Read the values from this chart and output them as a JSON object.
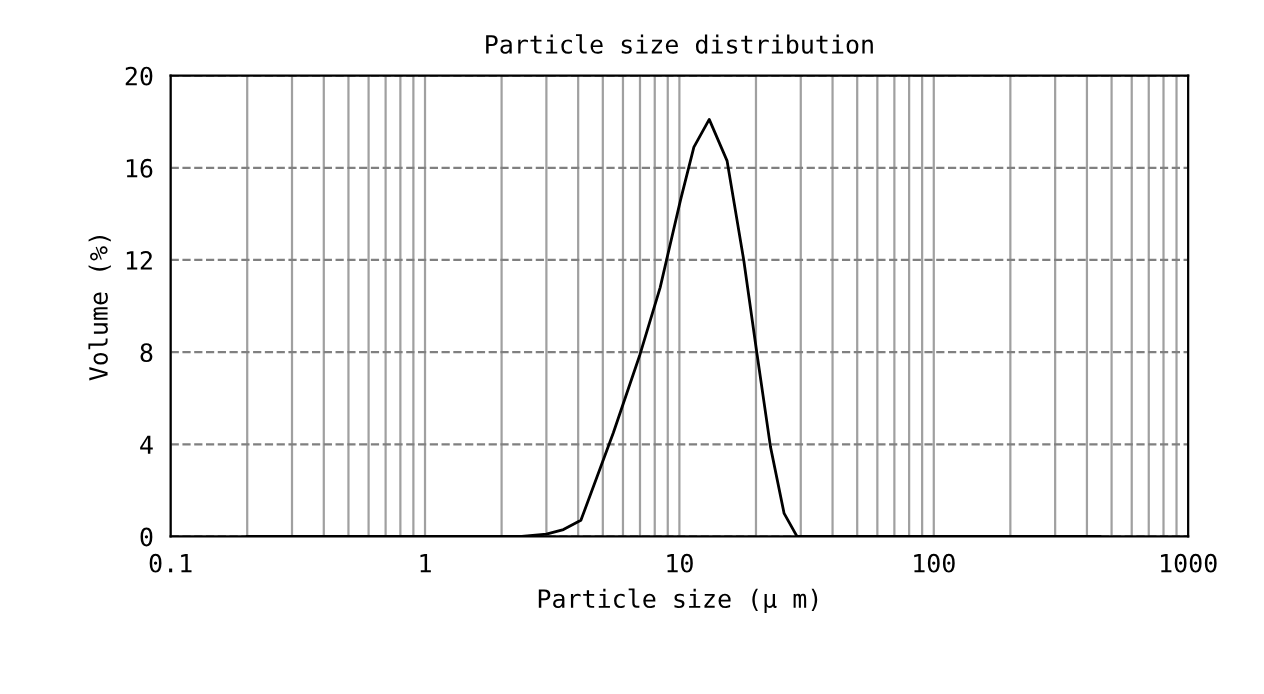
{
  "chart_data": {
    "type": "line",
    "title": "Particle size distribution",
    "xlabel": "Particle size (μ m)",
    "ylabel": "Volume (%)",
    "log": "x",
    "xlim": [
      0.1,
      1000
    ],
    "xticks": [
      0.1,
      1,
      10,
      100,
      1000
    ],
    "ylim": [
      0,
      20
    ],
    "yticks": [
      0,
      4,
      8,
      12,
      16,
      20
    ],
    "grid": true,
    "marker": "none",
    "line_style": "solid",
    "series": [
      {
        "color": "#000000",
        "x": [
          0.2,
          1,
          2.0,
          2.4,
          3.0,
          3.5,
          4.1,
          5.5,
          7.0,
          8.4,
          10.1,
          11.4,
          13.1,
          15.4,
          17.9,
          20.2,
          22.8,
          25.8,
          29,
          100,
          450
        ],
        "values": [
          0,
          0,
          0,
          0,
          0.1,
          0.3,
          0.7,
          4.5,
          7.9,
          10.8,
          14.6,
          16.9,
          18.1,
          16.3,
          12.0,
          7.9,
          3.9,
          1.0,
          0,
          0,
          0
        ]
      }
    ]
  }
}
